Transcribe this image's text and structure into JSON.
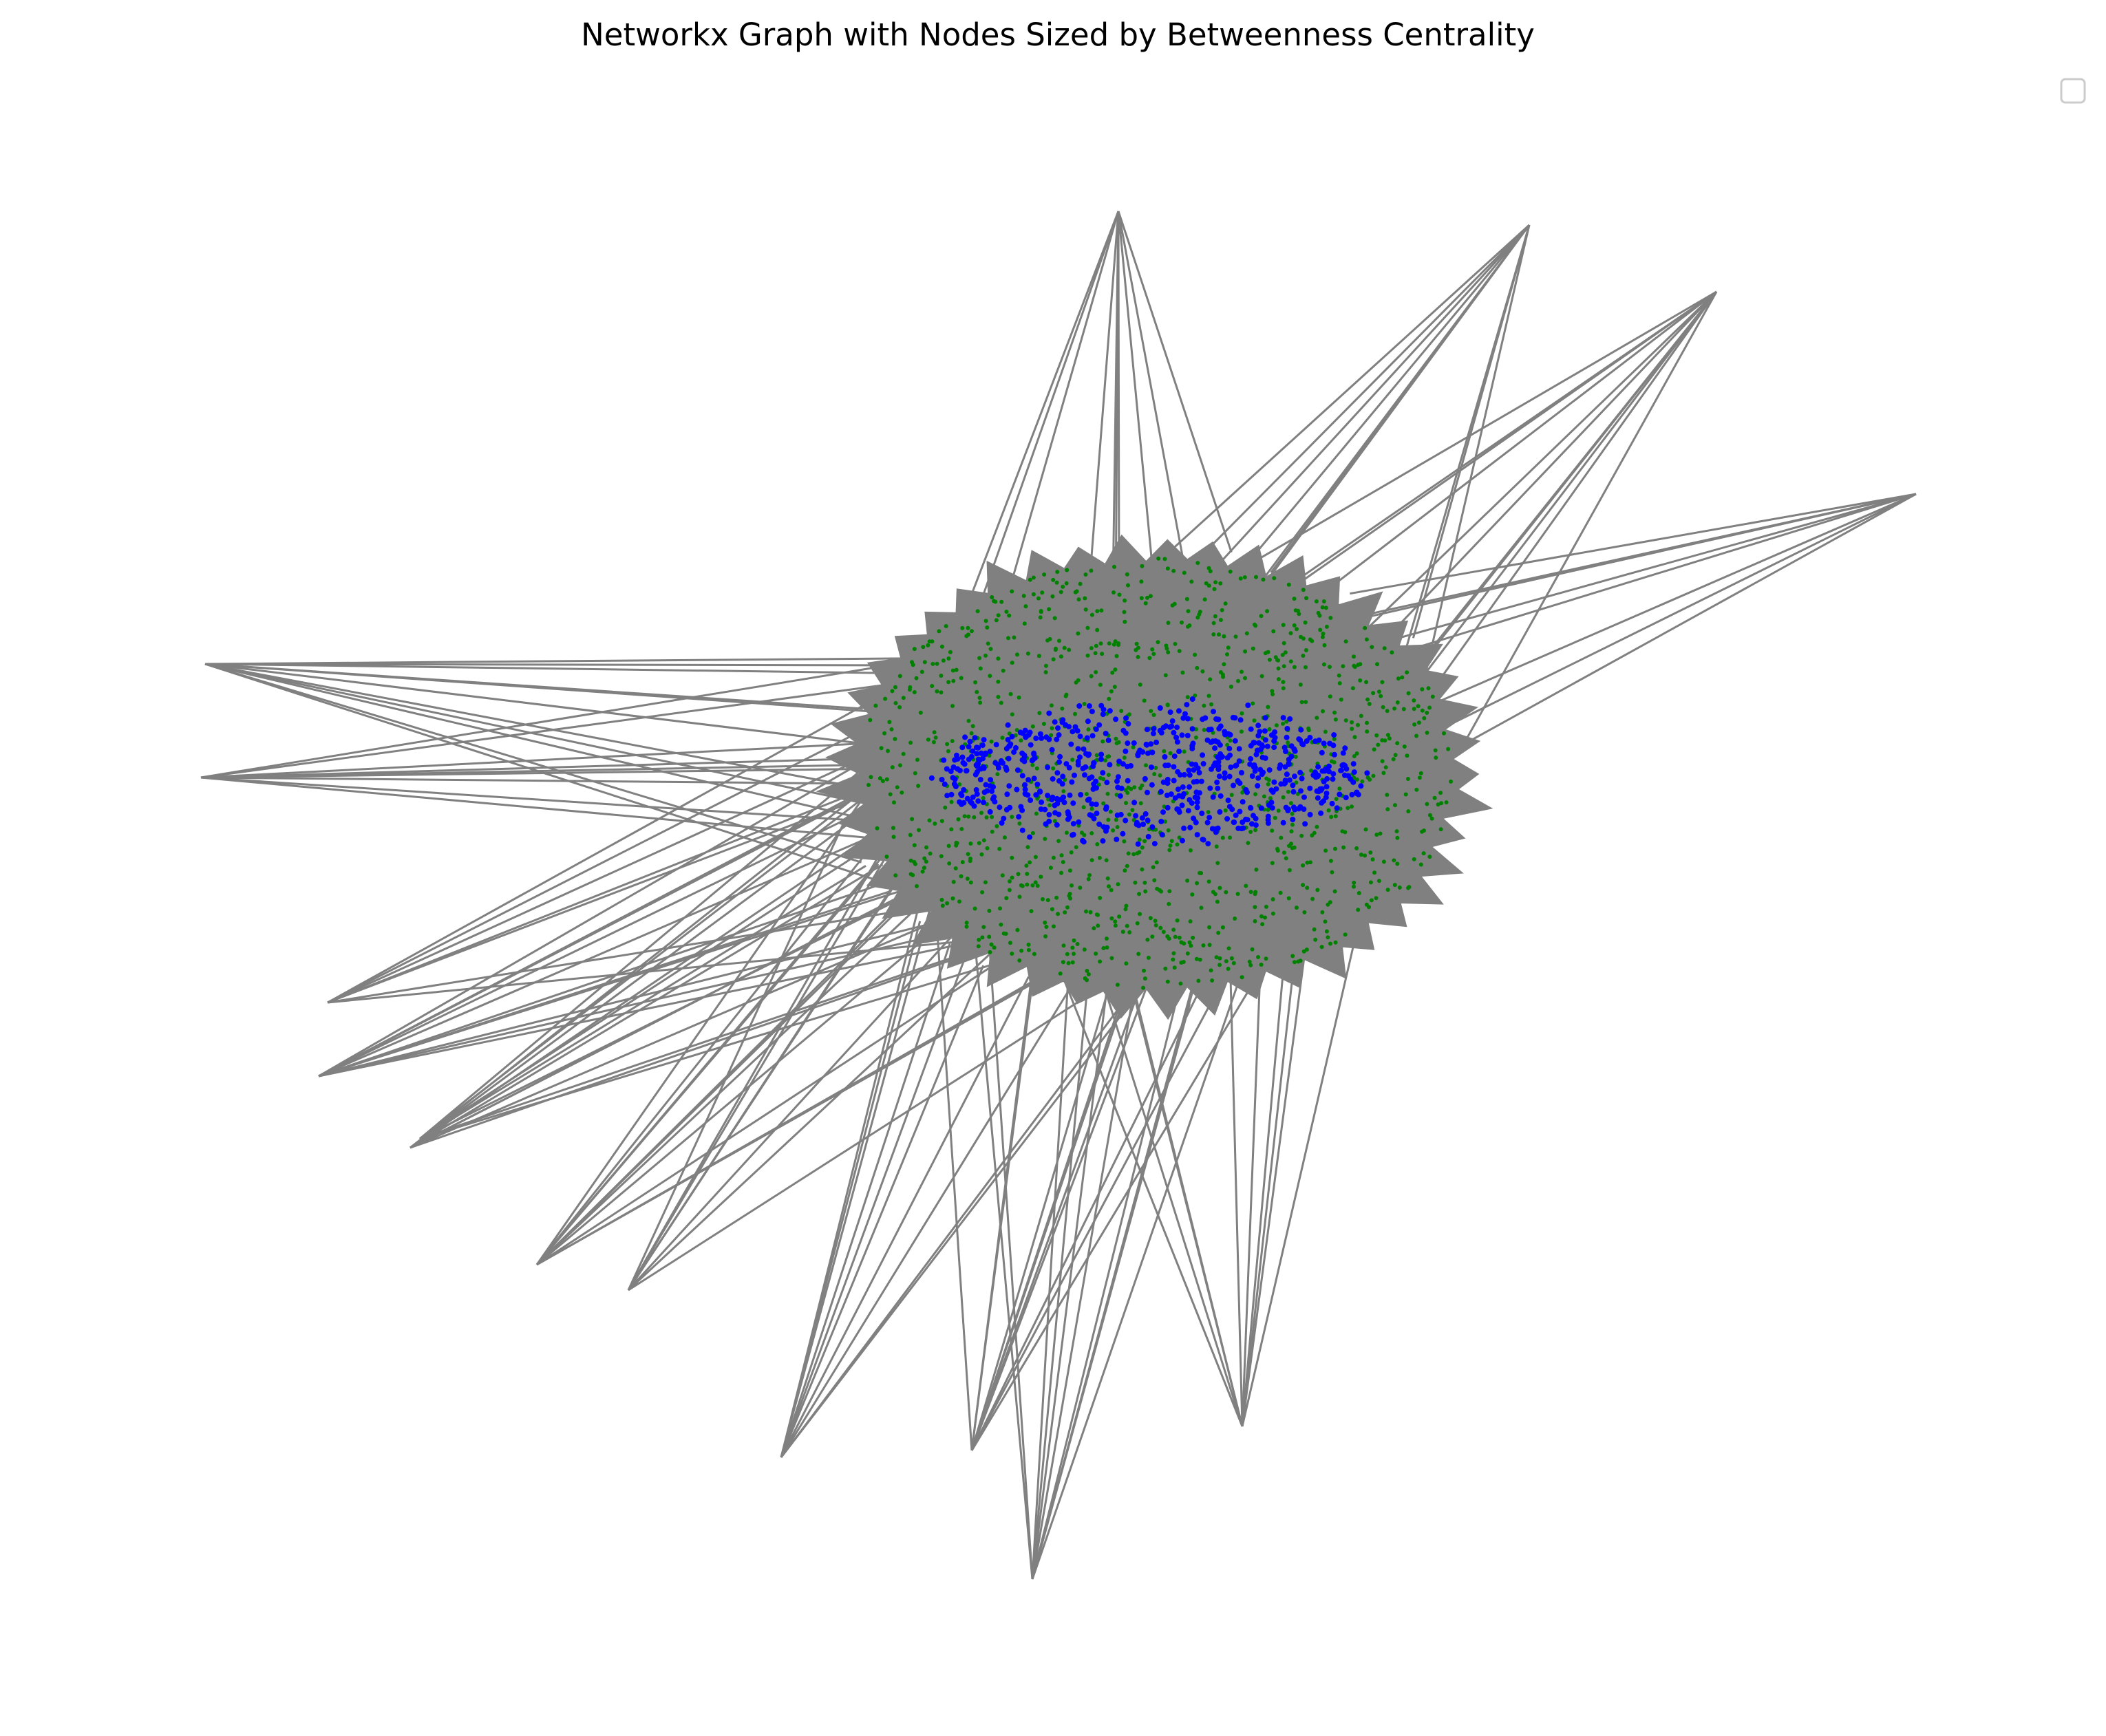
{
  "figure": {
    "title": "Networkx Graph with Nodes Sized by Betweenness Centrality"
  },
  "legend": {
    "entries": []
  },
  "graph": {
    "edge_color": "#808080",
    "node_colors": {
      "core": "#0000ff",
      "ring": "#008000"
    }
  }
}
